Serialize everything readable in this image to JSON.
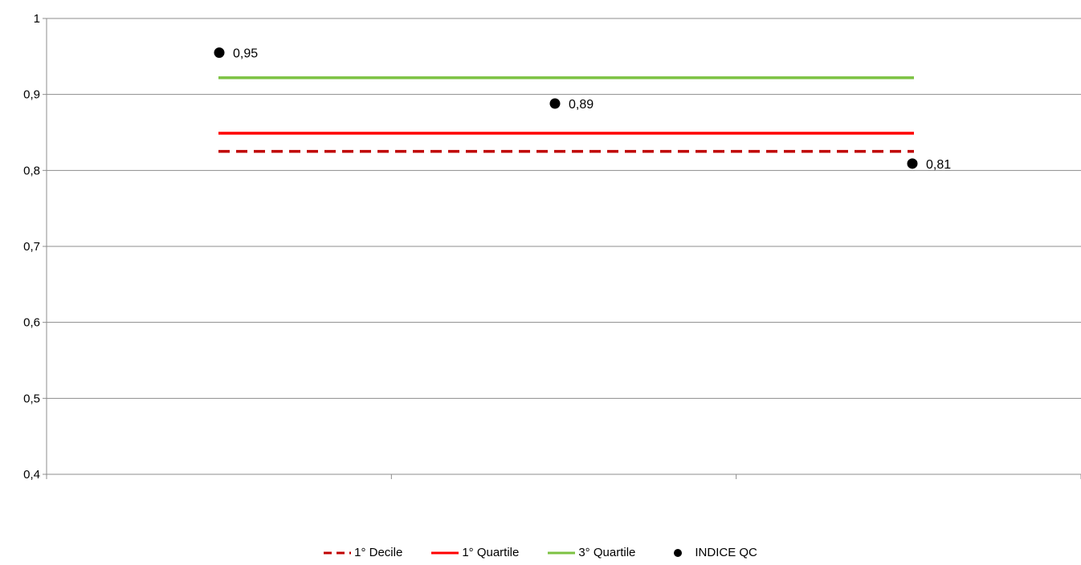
{
  "chart_data": {
    "type": "line",
    "ylim": [
      0.4,
      1.0
    ],
    "y_ticks": [
      "0,4",
      "0,5",
      "0,6",
      "0,7",
      "0,8",
      "0,9",
      "1"
    ],
    "y_tick_values": [
      0.4,
      0.5,
      0.6,
      0.7,
      0.8,
      0.9,
      1.0
    ],
    "x_positions": [
      1,
      2,
      3
    ],
    "grid": true,
    "legend_position": "bottom",
    "series": [
      {
        "name": "1° Decile",
        "type": "line",
        "values": [
          0.825,
          0.825,
          0.825
        ],
        "color": "#c00000",
        "style": "dashed"
      },
      {
        "name": "1° Quartile",
        "type": "line",
        "values": [
          0.849,
          0.849,
          0.849
        ],
        "color": "#ff0000",
        "style": "solid"
      },
      {
        "name": "3° Quartile",
        "type": "line",
        "values": [
          0.922,
          0.922,
          0.922
        ],
        "color": "#7cc242",
        "style": "solid"
      },
      {
        "name": "INDICE QC",
        "type": "scatter",
        "values": [
          0.955,
          0.888,
          0.809
        ],
        "labels": [
          "0,95",
          "0,89",
          "0,81"
        ],
        "color": "#000000"
      }
    ]
  }
}
